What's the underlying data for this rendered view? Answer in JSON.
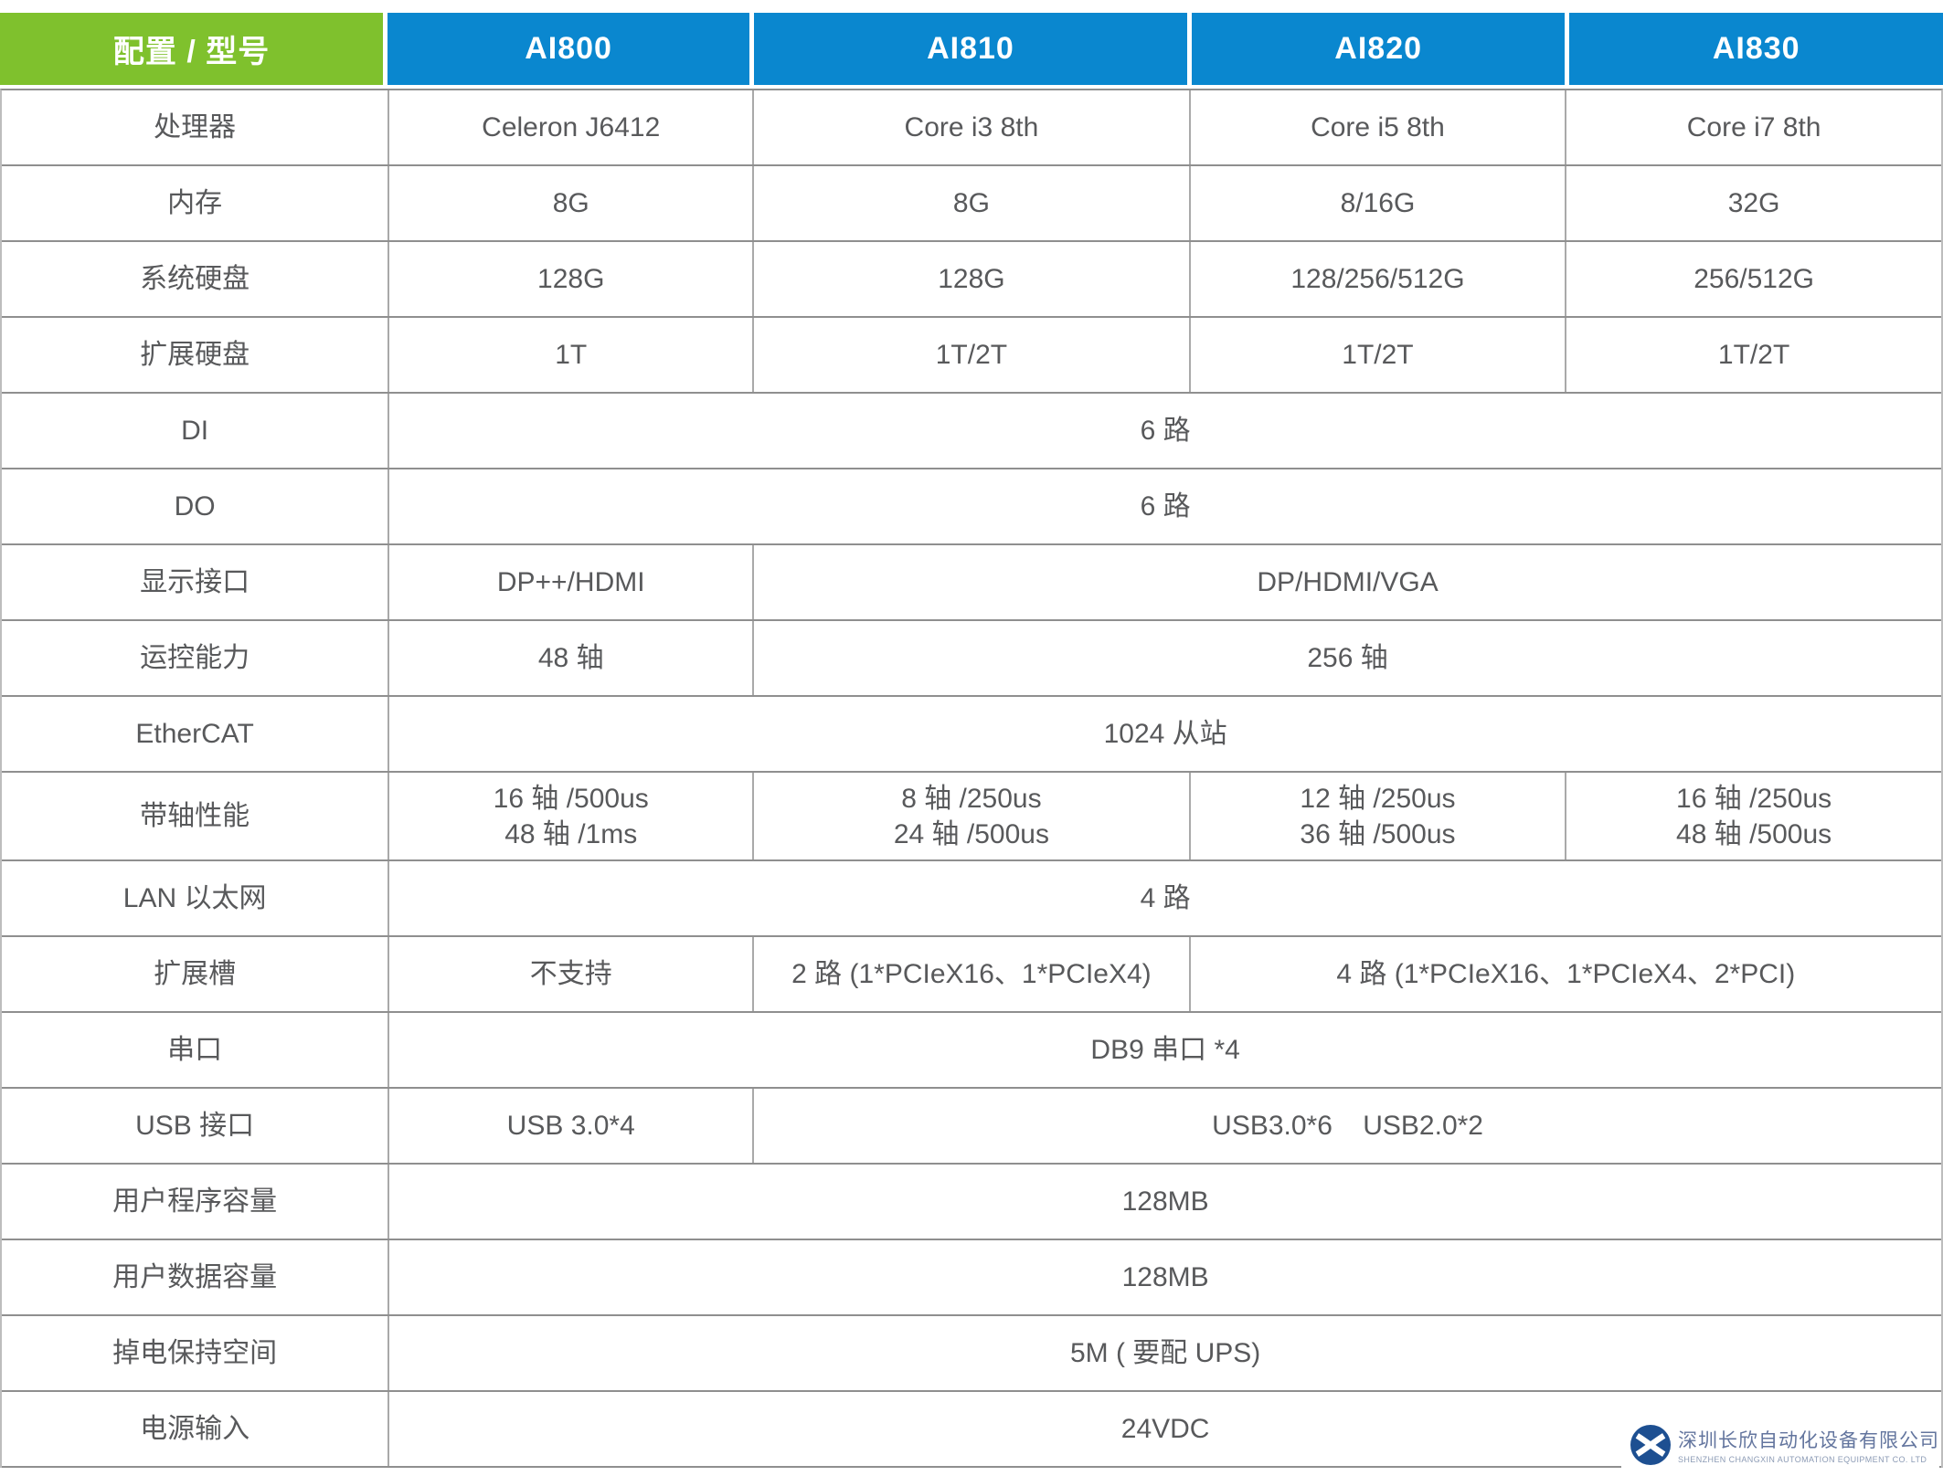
{
  "table": {
    "header": {
      "label": "配置 / 型号",
      "models": [
        "AI800",
        "AI810",
        "AI820",
        "AI830"
      ]
    },
    "rows": [
      {
        "label": "处理器",
        "cells": [
          {
            "span": 1,
            "text": "Celeron J6412"
          },
          {
            "span": 1,
            "text": "Core i3 8th"
          },
          {
            "span": 1,
            "text": "Core i5 8th"
          },
          {
            "span": 1,
            "text": "Core i7 8th"
          }
        ]
      },
      {
        "label": "内存",
        "cells": [
          {
            "span": 1,
            "text": "8G"
          },
          {
            "span": 1,
            "text": "8G"
          },
          {
            "span": 1,
            "text": "8/16G"
          },
          {
            "span": 1,
            "text": "32G"
          }
        ]
      },
      {
        "label": "系统硬盘",
        "cells": [
          {
            "span": 1,
            "text": "128G"
          },
          {
            "span": 1,
            "text": "128G"
          },
          {
            "span": 1,
            "text": "128/256/512G"
          },
          {
            "span": 1,
            "text": "256/512G"
          }
        ]
      },
      {
        "label": "扩展硬盘",
        "cells": [
          {
            "span": 1,
            "text": "1T"
          },
          {
            "span": 1,
            "text": "1T/2T"
          },
          {
            "span": 1,
            "text": "1T/2T"
          },
          {
            "span": 1,
            "text": "1T/2T"
          }
        ]
      },
      {
        "label": "DI",
        "cells": [
          {
            "span": 4,
            "text": "6 路"
          }
        ]
      },
      {
        "label": "DO",
        "cells": [
          {
            "span": 4,
            "text": "6 路"
          }
        ]
      },
      {
        "label": "显示接口",
        "cells": [
          {
            "span": 1,
            "text": "DP++/HDMI"
          },
          {
            "span": 3,
            "text": "DP/HDMI/VGA"
          }
        ]
      },
      {
        "label": "运控能力",
        "cells": [
          {
            "span": 1,
            "text": "48 轴"
          },
          {
            "span": 3,
            "text": "256 轴"
          }
        ]
      },
      {
        "label": "EtherCAT",
        "cells": [
          {
            "span": 4,
            "text": "1024 从站"
          }
        ]
      },
      {
        "label": "带轴性能",
        "cells": [
          {
            "span": 1,
            "lines": [
              "16 轴 /500us",
              "48 轴 /1ms"
            ]
          },
          {
            "span": 1,
            "lines": [
              "8 轴 /250us",
              "24 轴 /500us"
            ]
          },
          {
            "span": 1,
            "lines": [
              "12 轴 /250us",
              "36 轴 /500us"
            ]
          },
          {
            "span": 1,
            "lines": [
              "16 轴 /250us",
              "48 轴 /500us"
            ]
          }
        ]
      },
      {
        "label": "LAN 以太网",
        "cells": [
          {
            "span": 4,
            "text": "4 路"
          }
        ]
      },
      {
        "label": "扩展槽",
        "cells": [
          {
            "span": 1,
            "text": "不支持"
          },
          {
            "span": 1,
            "text": "2 路 (1*PCIeX16、1*PCIeX4)"
          },
          {
            "span": 2,
            "text": "4 路 (1*PCIeX16、1*PCIeX4、2*PCI)"
          }
        ]
      },
      {
        "label": "串口",
        "cells": [
          {
            "span": 4,
            "text": "DB9 串口 *4"
          }
        ]
      },
      {
        "label": "USB 接口",
        "cells": [
          {
            "span": 1,
            "text": "USB 3.0*4"
          },
          {
            "span": 3,
            "text": "USB3.0*6    USB2.0*2"
          }
        ]
      },
      {
        "label": "用户程序容量",
        "cells": [
          {
            "span": 4,
            "text": "128MB"
          }
        ]
      },
      {
        "label": "用户数据容量",
        "cells": [
          {
            "span": 4,
            "text": "128MB"
          }
        ]
      },
      {
        "label": "掉电保持空间",
        "cells": [
          {
            "span": 4,
            "text": "5M ( 要配 UPS)"
          }
        ]
      },
      {
        "label": "电源输入",
        "cells": [
          {
            "span": 4,
            "text": "24VDC"
          }
        ]
      }
    ]
  },
  "footer_logo": {
    "company_cn": "深圳长欣自动化设备有限公司",
    "company_en": "SHENZHEN CHANGXIN AUTOMATION EQUIPMENT CO. LTD"
  },
  "colors": {
    "header_green": "#7FC12D",
    "header_blue": "#0A87CF",
    "cell_text": "#58595B",
    "border_horizontal": "#8F8F8F",
    "border_vertical": "#A9A9A9",
    "logo_blue": "#1D4F91",
    "logo_text": "#63759E"
  }
}
